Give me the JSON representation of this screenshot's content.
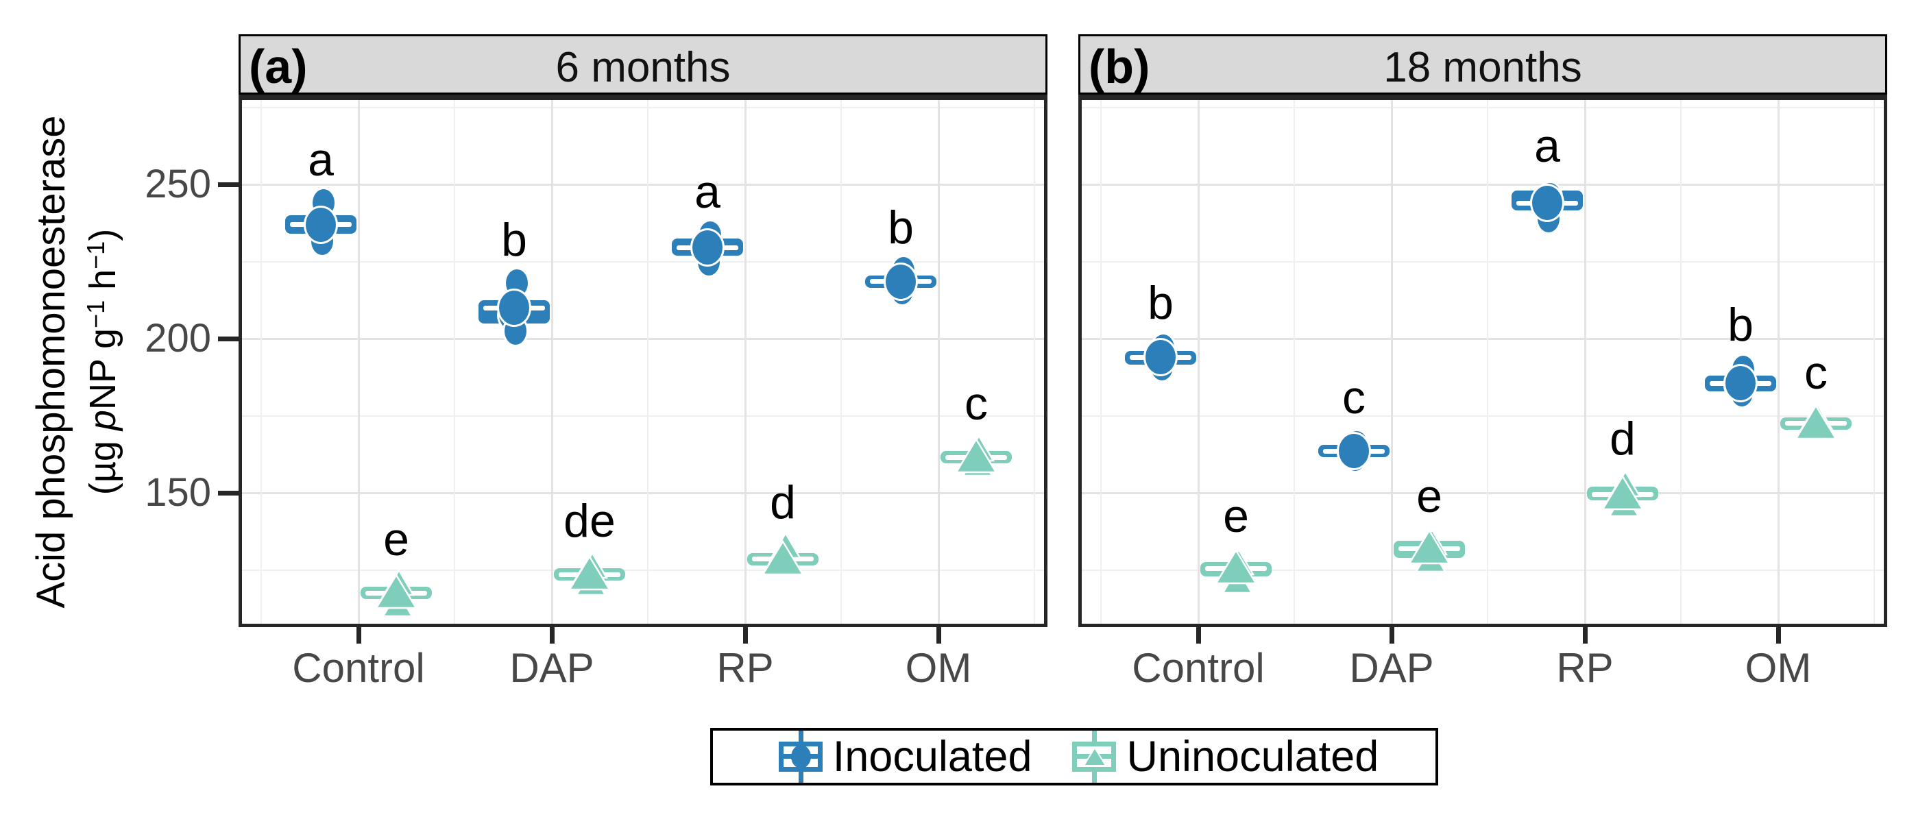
{
  "chart_data": {
    "type": "boxplot-grouped",
    "ylabel_line1": "Acid phosphomonoesterase",
    "ylabel_unit_segments": [
      {
        "t": "(µg ",
        "s": "n"
      },
      {
        "t": "p",
        "s": "i"
      },
      {
        "t": "NP g",
        "s": "n"
      },
      {
        "t": "−1",
        "s": "sup"
      },
      {
        "t": " h",
        "s": "n"
      },
      {
        "t": "−1",
        "s": "sup"
      },
      {
        "t": ")",
        "s": "n"
      }
    ],
    "y_ticks": [
      250,
      200,
      150
    ],
    "y_gridlines_major": [
      250,
      200,
      150
    ],
    "y_gridlines_minor": [
      275,
      225,
      175,
      125
    ],
    "ylim": [
      107,
      279
    ],
    "grid": "on",
    "legend_position": "bottom",
    "categories": [
      "Control",
      "DAP",
      "RP",
      "OM"
    ],
    "series": [
      {
        "name": "Inoculated",
        "color": "#2c7fb8",
        "marker": "circle"
      },
      {
        "name": "Uninoculated",
        "color": "#7fcdbb",
        "marker": "triangle"
      }
    ],
    "colors": {
      "header_fill": "#d9d9d9",
      "panel_border": "#262626",
      "axis_text": "#474747",
      "letter_text": "#000000"
    },
    "panels": [
      {
        "tag": "(a)",
        "title": "6 months",
        "groups": [
          {
            "category": "Control",
            "series": "Inoculated",
            "letter": "a",
            "q1": 234,
            "median": 237,
            "q3": 240,
            "low": 231.5,
            "high": 244,
            "points": [
              244,
              237,
              231.5
            ]
          },
          {
            "category": "DAP",
            "series": "Inoculated",
            "letter": "b",
            "q1": 205,
            "median": 210,
            "q3": 212.5,
            "low": 202.5,
            "high": 218,
            "points": [
              218,
              207.5,
              202.5
            ]
          },
          {
            "category": "RP",
            "series": "Inoculated",
            "letter": "a",
            "q1": 227,
            "median": 229.5,
            "q3": 232.5,
            "low": 224.5,
            "high": 233.5,
            "points": [
              233.5,
              229.5,
              225
            ]
          },
          {
            "category": "OM",
            "series": "Inoculated",
            "letter": "b",
            "q1": 216.5,
            "median": 218.5,
            "q3": 220.5,
            "low": 215.5,
            "high": 222,
            "points": [
              222,
              218.5,
              215.5
            ]
          },
          {
            "category": "Control",
            "series": "Uninoculated",
            "letter": "e",
            "q1": 115.5,
            "median": 117.5,
            "q3": 119.5,
            "low": 113.5,
            "high": 121,
            "points": [
              121,
              117.5,
              114
            ]
          },
          {
            "category": "DAP",
            "series": "Uninoculated",
            "letter": "de",
            "q1": 121.5,
            "median": 123.5,
            "q3": 125.5,
            "low": 121,
            "high": 127,
            "points": [
              126.5,
              123.5,
              121
            ]
          },
          {
            "category": "RP",
            "series": "Uninoculated",
            "letter": "d",
            "q1": 126.5,
            "median": 128.5,
            "q3": 130.5,
            "low": 126,
            "high": 133,
            "points": [
              133,
              128.5
            ]
          },
          {
            "category": "OM",
            "series": "Uninoculated",
            "letter": "c",
            "q1": 159.5,
            "median": 161.5,
            "q3": 163.5,
            "low": 159,
            "high": 165,
            "points": [
              164.5,
              161,
              159.5
            ]
          }
        ]
      },
      {
        "tag": "(b)",
        "title": "18 months",
        "groups": [
          {
            "category": "Control",
            "series": "Inoculated",
            "letter": "b",
            "q1": 191.5,
            "median": 194,
            "q3": 196,
            "low": 190.5,
            "high": 197.5,
            "points": [
              197,
              194,
              191
            ]
          },
          {
            "category": "DAP",
            "series": "Inoculated",
            "letter": "c",
            "q1": 161.5,
            "median": 163.5,
            "q3": 165.5,
            "low": 160.5,
            "high": 167,
            "points": [
              165.5,
              163,
              161.5
            ]
          },
          {
            "category": "RP",
            "series": "Inoculated",
            "letter": "a",
            "q1": 241.5,
            "median": 244,
            "q3": 248,
            "low": 239,
            "high": 248.5,
            "points": [
              246,
              244,
              239
            ]
          },
          {
            "category": "OM",
            "series": "Inoculated",
            "letter": "b",
            "q1": 183,
            "median": 185.5,
            "q3": 188,
            "low": 182,
            "high": 190.5,
            "points": [
              190,
              185,
              182.5
            ]
          },
          {
            "category": "Control",
            "series": "Uninoculated",
            "letter": "e",
            "q1": 123,
            "median": 125.5,
            "q3": 127.5,
            "low": 121.5,
            "high": 128.5,
            "points": [
              127.5,
              125,
              121.5
            ]
          },
          {
            "category": "DAP",
            "series": "Uninoculated",
            "letter": "e",
            "q1": 129,
            "median": 132,
            "q3": 134.5,
            "low": 128.5,
            "high": 135,
            "points": [
              134,
              131.5,
              128.5
            ]
          },
          {
            "category": "RP",
            "series": "Uninoculated",
            "letter": "d",
            "q1": 147.5,
            "median": 149.5,
            "q3": 152,
            "low": 146.5,
            "high": 153.5,
            "points": [
              153,
              149.5,
              146.5
            ]
          },
          {
            "category": "OM",
            "series": "Uninoculated",
            "letter": "c",
            "q1": 170.5,
            "median": 172.5,
            "q3": 174.5,
            "low": 170,
            "high": 175,
            "points": [
              174,
              172.5
            ]
          }
        ]
      }
    ]
  }
}
